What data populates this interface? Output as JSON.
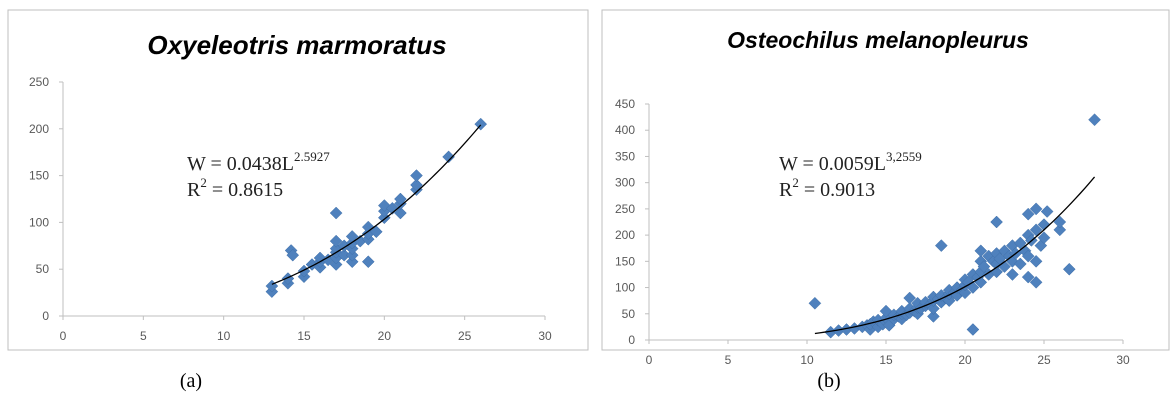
{
  "colors": {
    "marker": "#4f81bd",
    "trendline": "#000000",
    "axis": "#bfbfbf",
    "frame": "#bfbfbf",
    "text": "#000000"
  },
  "chart_data": [
    {
      "type": "scatter",
      "title": "Oxyeleotris marmoratus",
      "caption": "(a)",
      "marker": "diamond",
      "grid": false,
      "xlim": [
        0,
        30
      ],
      "ylim": [
        0,
        250
      ],
      "xticks": [
        0,
        5,
        10,
        15,
        20,
        25,
        30
      ],
      "yticks": [
        0,
        50,
        100,
        150,
        200,
        250
      ],
      "equation": {
        "prefix": "W = 0.0438L",
        "exponent": "2.5927",
        "r2_prefix": "R",
        "r2_sup": "2",
        "r2_value": " = 0.8615"
      },
      "trendline": {
        "type": "power",
        "a": 0.0438,
        "b": 2.5927,
        "x_from": 13,
        "x_to": 26
      },
      "series": [
        {
          "points": [
            [
              13,
              26
            ],
            [
              13,
              32
            ],
            [
              14,
              35
            ],
            [
              14,
              40
            ],
            [
              14.2,
              70
            ],
            [
              14.3,
              65
            ],
            [
              15,
              42
            ],
            [
              15,
              48
            ],
            [
              15.5,
              55
            ],
            [
              16,
              52
            ],
            [
              16,
              58
            ],
            [
              16,
              62
            ],
            [
              16.5,
              60
            ],
            [
              17,
              55
            ],
            [
              17,
              62
            ],
            [
              17,
              68
            ],
            [
              17,
              72
            ],
            [
              17,
              80
            ],
            [
              17,
              110
            ],
            [
              17.5,
              65
            ],
            [
              17.5,
              75
            ],
            [
              18,
              58
            ],
            [
              18,
              65
            ],
            [
              18,
              72
            ],
            [
              18,
              78
            ],
            [
              18,
              85
            ],
            [
              18.5,
              80
            ],
            [
              19,
              58
            ],
            [
              19,
              82
            ],
            [
              19,
              88
            ],
            [
              19,
              95
            ],
            [
              19.5,
              90
            ],
            [
              20,
              105
            ],
            [
              20,
              112
            ],
            [
              20,
              118
            ],
            [
              20.5,
              115
            ],
            [
              21,
              110
            ],
            [
              21,
              120
            ],
            [
              21,
              125
            ],
            [
              22,
              135
            ],
            [
              22,
              140
            ],
            [
              22,
              150
            ],
            [
              24,
              170
            ],
            [
              26,
              205
            ]
          ]
        }
      ]
    },
    {
      "type": "scatter",
      "title": "Osteochilus melanopleurus",
      "caption": "(b)",
      "marker": "diamond",
      "grid": false,
      "xlim": [
        0,
        30
      ],
      "ylim": [
        0,
        450
      ],
      "xticks": [
        0,
        5,
        10,
        15,
        20,
        25,
        30
      ],
      "yticks": [
        0,
        50,
        100,
        150,
        200,
        250,
        300,
        350,
        400,
        450
      ],
      "equation": {
        "prefix": "W = 0.0059L",
        "exponent": "3,2559",
        "r2_prefix": "R",
        "r2_sup": "2",
        "r2_value": " = 0.9013"
      },
      "trendline": {
        "type": "power",
        "a": 0.0059,
        "b": 3.2559,
        "x_from": 10.5,
        "x_to": 28.2
      },
      "series": [
        {
          "points": [
            [
              10.5,
              70
            ],
            [
              11.5,
              15
            ],
            [
              12,
              18
            ],
            [
              12.5,
              20
            ],
            [
              13,
              22
            ],
            [
              13.5,
              25
            ],
            [
              13.8,
              28
            ],
            [
              14,
              20
            ],
            [
              14,
              30
            ],
            [
              14.2,
              35
            ],
            [
              14.5,
              25
            ],
            [
              14.5,
              38
            ],
            [
              14.8,
              30
            ],
            [
              15,
              35
            ],
            [
              15,
              42
            ],
            [
              15,
              55
            ],
            [
              15.2,
              28
            ],
            [
              15.5,
              40
            ],
            [
              15.5,
              48
            ],
            [
              15.8,
              45
            ],
            [
              16,
              40
            ],
            [
              16,
              50
            ],
            [
              16,
              55
            ],
            [
              16.3,
              48
            ],
            [
              16.5,
              52
            ],
            [
              16.5,
              60
            ],
            [
              16.5,
              80
            ],
            [
              16.8,
              55
            ],
            [
              17,
              50
            ],
            [
              17,
              62
            ],
            [
              17,
              70
            ],
            [
              17.2,
              60
            ],
            [
              17.5,
              65
            ],
            [
              17.5,
              72
            ],
            [
              17.8,
              68
            ],
            [
              18,
              45
            ],
            [
              18,
              60
            ],
            [
              18,
              75
            ],
            [
              18,
              82
            ],
            [
              18.3,
              78
            ],
            [
              18.5,
              72
            ],
            [
              18.5,
              85
            ],
            [
              18.5,
              180
            ],
            [
              18.8,
              80
            ],
            [
              19,
              75
            ],
            [
              19,
              88
            ],
            [
              19,
              95
            ],
            [
              19.3,
              90
            ],
            [
              19.5,
              85
            ],
            [
              19.5,
              100
            ],
            [
              19.8,
              95
            ],
            [
              20,
              90
            ],
            [
              20,
              105
            ],
            [
              20,
              115
            ],
            [
              20.2,
              110
            ],
            [
              20.5,
              20
            ],
            [
              20.5,
              100
            ],
            [
              20.5,
              125
            ],
            [
              20.8,
              120
            ],
            [
              21,
              110
            ],
            [
              21,
              130
            ],
            [
              21,
              150
            ],
            [
              21,
              170
            ],
            [
              21.2,
              140
            ],
            [
              21.5,
              125
            ],
            [
              21.5,
              160
            ],
            [
              21.8,
              150
            ],
            [
              22,
              130
            ],
            [
              22,
              145
            ],
            [
              22,
              165
            ],
            [
              22,
              225
            ],
            [
              22.2,
              155
            ],
            [
              22.5,
              140
            ],
            [
              22.5,
              170
            ],
            [
              22.8,
              160
            ],
            [
              23,
              125
            ],
            [
              23,
              150
            ],
            [
              23,
              180
            ],
            [
              23.2,
              165
            ],
            [
              23.5,
              145
            ],
            [
              23.5,
              185
            ],
            [
              23.8,
              170
            ],
            [
              24,
              120
            ],
            [
              24,
              160
            ],
            [
              24,
              200
            ],
            [
              24,
              240
            ],
            [
              24.2,
              190
            ],
            [
              24.5,
              110
            ],
            [
              24.5,
              150
            ],
            [
              24.5,
              210
            ],
            [
              24.5,
              250
            ],
            [
              24.8,
              180
            ],
            [
              25,
              195
            ],
            [
              25,
              220
            ],
            [
              25.2,
              245
            ],
            [
              26,
              210
            ],
            [
              26,
              225
            ],
            [
              26.6,
              135
            ],
            [
              28.2,
              420
            ]
          ]
        }
      ]
    }
  ]
}
